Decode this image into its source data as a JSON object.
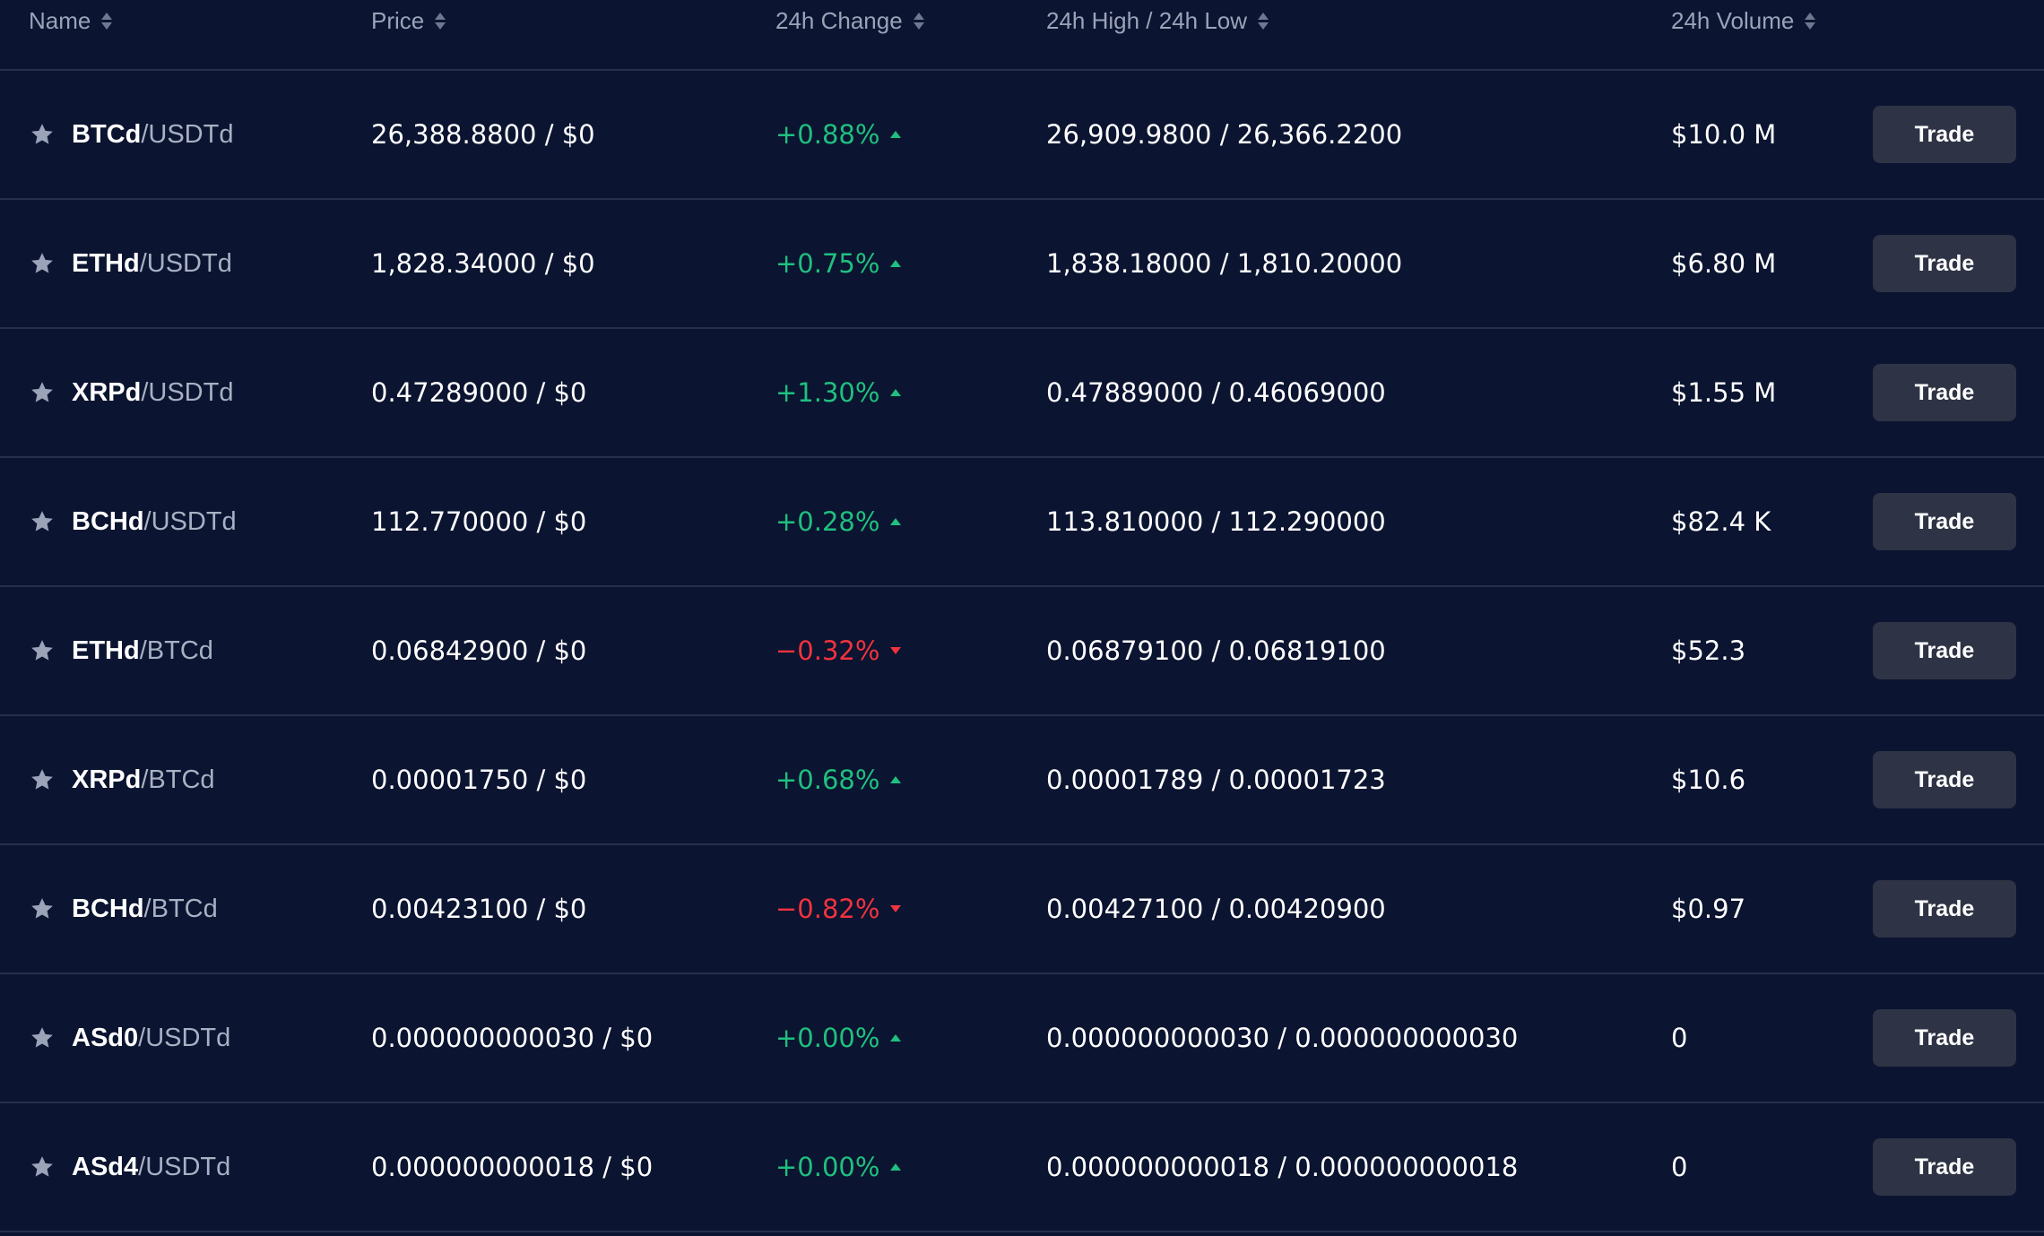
{
  "colors": {
    "background": "#0b1430",
    "divider": "#26304a",
    "positive": "#1fc07f",
    "negative": "#f0333f",
    "button_bg": "#2e3445",
    "header_text": "#9aa3b8",
    "quote_text": "#a8b0c3"
  },
  "icons": {
    "favorite": "star-icon",
    "sort": "sort-icon",
    "change_up": "triangle-up-icon",
    "change_down": "triangle-down-icon"
  },
  "headers": {
    "name": "Name",
    "price": "Price",
    "change": "24h Change",
    "high_low": "24h High / 24h Low",
    "volume": "24h Volume"
  },
  "rows": [
    {
      "base": "BTCd",
      "quote": "/USDTd",
      "price": "26,388.8800 / $0",
      "change": "+0.88%",
      "direction": "up",
      "high_low": "26,909.9800 / 26,366.2200",
      "volume": "$10.0 M",
      "action": "Trade"
    },
    {
      "base": "ETHd",
      "quote": "/USDTd",
      "price": "1,828.34000 / $0",
      "change": "+0.75%",
      "direction": "up",
      "high_low": "1,838.18000 / 1,810.20000",
      "volume": "$6.80 M",
      "action": "Trade"
    },
    {
      "base": "XRPd",
      "quote": "/USDTd",
      "price": "0.47289000 / $0",
      "change": "+1.30%",
      "direction": "up",
      "high_low": "0.47889000 / 0.46069000",
      "volume": "$1.55 M",
      "action": "Trade"
    },
    {
      "base": "BCHd",
      "quote": "/USDTd",
      "price": "112.770000 / $0",
      "change": "+0.28%",
      "direction": "up",
      "high_low": "113.810000 / 112.290000",
      "volume": "$82.4 K",
      "action": "Trade"
    },
    {
      "base": "ETHd",
      "quote": "/BTCd",
      "price": "0.06842900 / $0",
      "change": "−0.32%",
      "direction": "down",
      "high_low": "0.06879100 / 0.06819100",
      "volume": "$52.3",
      "action": "Trade"
    },
    {
      "base": "XRPd",
      "quote": "/BTCd",
      "price": "0.00001750 / $0",
      "change": "+0.68%",
      "direction": "up",
      "high_low": "0.00001789 / 0.00001723",
      "volume": "$10.6",
      "action": "Trade"
    },
    {
      "base": "BCHd",
      "quote": "/BTCd",
      "price": "0.00423100 / $0",
      "change": "−0.82%",
      "direction": "down",
      "high_low": "0.00427100 / 0.00420900",
      "volume": "$0.97",
      "action": "Trade"
    },
    {
      "base": "ASd0",
      "quote": "/USDTd",
      "price": "0.000000000030 / $0",
      "change": "+0.00%",
      "direction": "up",
      "high_low": "0.000000000030 / 0.000000000030",
      "volume": "0",
      "action": "Trade"
    },
    {
      "base": "ASd4",
      "quote": "/USDTd",
      "price": "0.000000000018 / $0",
      "change": "+0.00%",
      "direction": "up",
      "high_low": "0.000000000018 / 0.000000000018",
      "volume": "0",
      "action": "Trade"
    }
  ]
}
